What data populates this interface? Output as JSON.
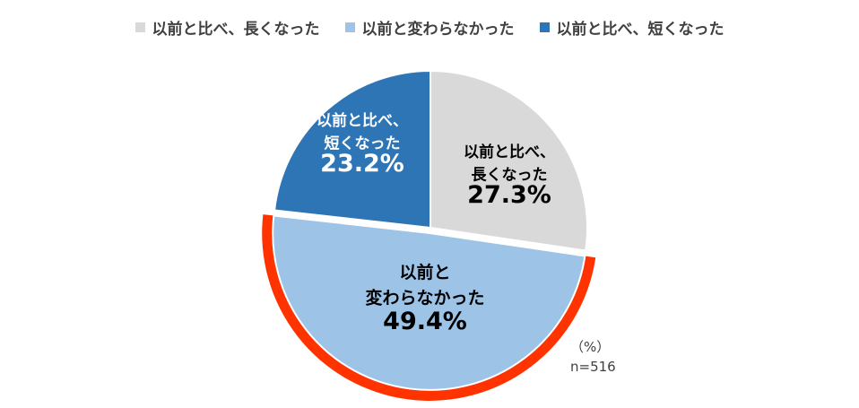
{
  "chart_data": {
    "type": "pie",
    "legend_position": "top",
    "slices": [
      {
        "name": "以前と比べ、長くなった",
        "value": 27.3,
        "value_label": "27.3%",
        "label_lines": [
          "以前と比べ、",
          "長くなった"
        ],
        "color": "#d9d9d9",
        "highlighted": false
      },
      {
        "name": "以前と変わらなかった",
        "value": 49.4,
        "value_label": "49.4%",
        "label_lines": [
          "以前と",
          "変わらなかった"
        ],
        "color": "#9dc3e6",
        "highlighted": true,
        "highlight_color": "#ff3300"
      },
      {
        "name": "以前と比べ、短くなった",
        "value": 23.2,
        "value_label": "23.2%",
        "label_lines": [
          "以前と比べ、",
          "短くなった"
        ],
        "color": "#2e75b6",
        "highlighted": false
      }
    ]
  },
  "notes": {
    "unit": "（%）",
    "sample": "n=516"
  }
}
